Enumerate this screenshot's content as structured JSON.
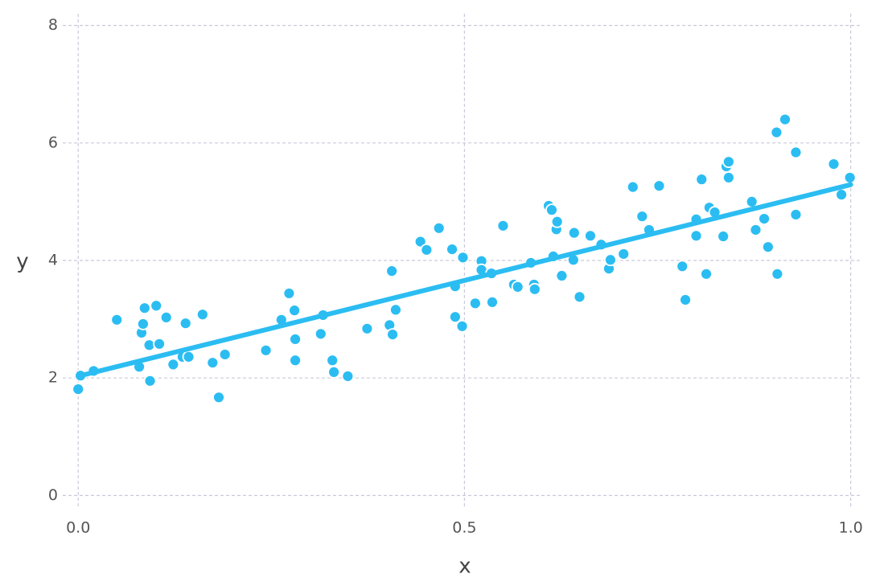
{
  "chart_data": {
    "type": "scatter",
    "x_label": "x",
    "y_label": "y",
    "xlim": [
      -0.02,
      1.015
    ],
    "ylim": [
      -0.2,
      8.2
    ],
    "xticks": [
      {
        "value": 0,
        "label": "0.0"
      },
      {
        "value": 0.5,
        "label": "0.5"
      },
      {
        "value": 1,
        "label": "1.0"
      }
    ],
    "yticks": [
      0,
      2,
      4,
      6,
      8
    ],
    "grid": true,
    "series": [
      {
        "type": "scatter",
        "color": "#2bbdf2",
        "x": [
          0.0,
          0.003,
          0.02,
          0.05,
          0.079,
          0.082,
          0.084,
          0.086,
          0.092,
          0.093,
          0.101,
          0.105,
          0.114,
          0.123,
          0.135,
          0.139,
          0.143,
          0.161,
          0.174,
          0.182,
          0.19,
          0.243,
          0.263,
          0.273,
          0.28,
          0.281,
          0.281,
          0.314,
          0.317,
          0.329,
          0.331,
          0.349,
          0.374,
          0.403,
          0.406,
          0.407,
          0.411,
          0.443,
          0.451,
          0.467,
          0.484,
          0.488,
          0.488,
          0.497,
          0.498,
          0.514,
          0.522,
          0.522,
          0.535,
          0.536,
          0.55,
          0.564,
          0.569,
          0.586,
          0.59,
          0.591,
          0.609,
          0.613,
          0.615,
          0.619,
          0.62,
          0.626,
          0.641,
          0.642,
          0.649,
          0.663,
          0.677,
          0.687,
          0.689,
          0.706,
          0.718,
          0.73,
          0.739,
          0.752,
          0.782,
          0.786,
          0.8,
          0.8,
          0.807,
          0.813,
          0.817,
          0.824,
          0.835,
          0.839,
          0.842,
          0.842,
          0.872,
          0.877,
          0.888,
          0.893,
          0.904,
          0.905,
          0.915,
          0.929,
          0.929,
          0.978,
          0.988,
          0.999
        ],
        "y": [
          1.81,
          2.04,
          2.12,
          2.99,
          2.19,
          2.77,
          2.92,
          3.19,
          2.56,
          1.95,
          3.23,
          2.58,
          3.03,
          2.23,
          2.36,
          2.93,
          2.36,
          3.08,
          2.26,
          1.67,
          2.4,
          2.47,
          2.99,
          3.44,
          3.15,
          2.66,
          2.3,
          2.75,
          3.07,
          2.3,
          2.1,
          2.03,
          2.84,
          2.9,
          3.82,
          2.74,
          3.16,
          4.32,
          4.18,
          4.55,
          4.19,
          3.56,
          3.04,
          2.88,
          4.05,
          3.27,
          3.99,
          3.84,
          3.78,
          3.29,
          4.59,
          3.59,
          3.55,
          3.96,
          3.59,
          3.51,
          4.93,
          4.86,
          4.07,
          4.53,
          4.66,
          3.74,
          4.01,
          4.47,
          3.38,
          4.42,
          4.27,
          3.86,
          4.01,
          4.11,
          5.25,
          4.75,
          4.52,
          5.27,
          3.9,
          3.33,
          4.7,
          4.42,
          5.38,
          3.77,
          4.9,
          4.82,
          4.41,
          5.6,
          5.68,
          5.41,
          5.0,
          4.52,
          4.71,
          4.23,
          6.18,
          3.77,
          6.4,
          5.84,
          4.78,
          5.64,
          5.12,
          5.41
        ]
      },
      {
        "type": "line",
        "color": "#2bbdf2",
        "x": [
          0,
          1
        ],
        "y": [
          2.03,
          5.29
        ]
      }
    ]
  }
}
